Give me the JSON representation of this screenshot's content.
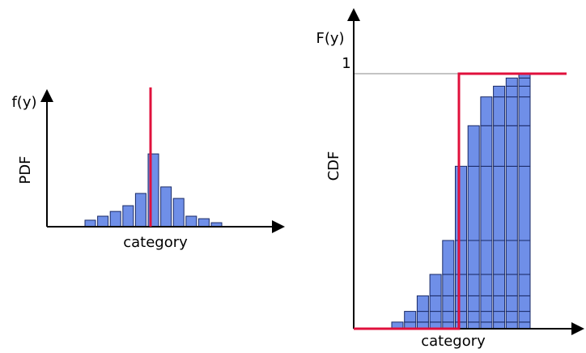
{
  "chart_data": [
    {
      "type": "bar",
      "y_label": "f(y)",
      "axis_label": "PDF",
      "x_label": "category",
      "values": [
        0.026,
        0.042,
        0.061,
        0.084,
        0.133,
        0.291,
        0.159,
        0.113,
        0.042,
        0.032,
        0.016
      ],
      "color": "#6f8fe8"
    },
    {
      "type": "cumulative",
      "y_label": "F(y)",
      "axis_label": "CDF",
      "x_label": "category",
      "ylim": [
        0,
        1
      ],
      "yticks": [
        1
      ],
      "color": "#6f8fe8"
    }
  ]
}
